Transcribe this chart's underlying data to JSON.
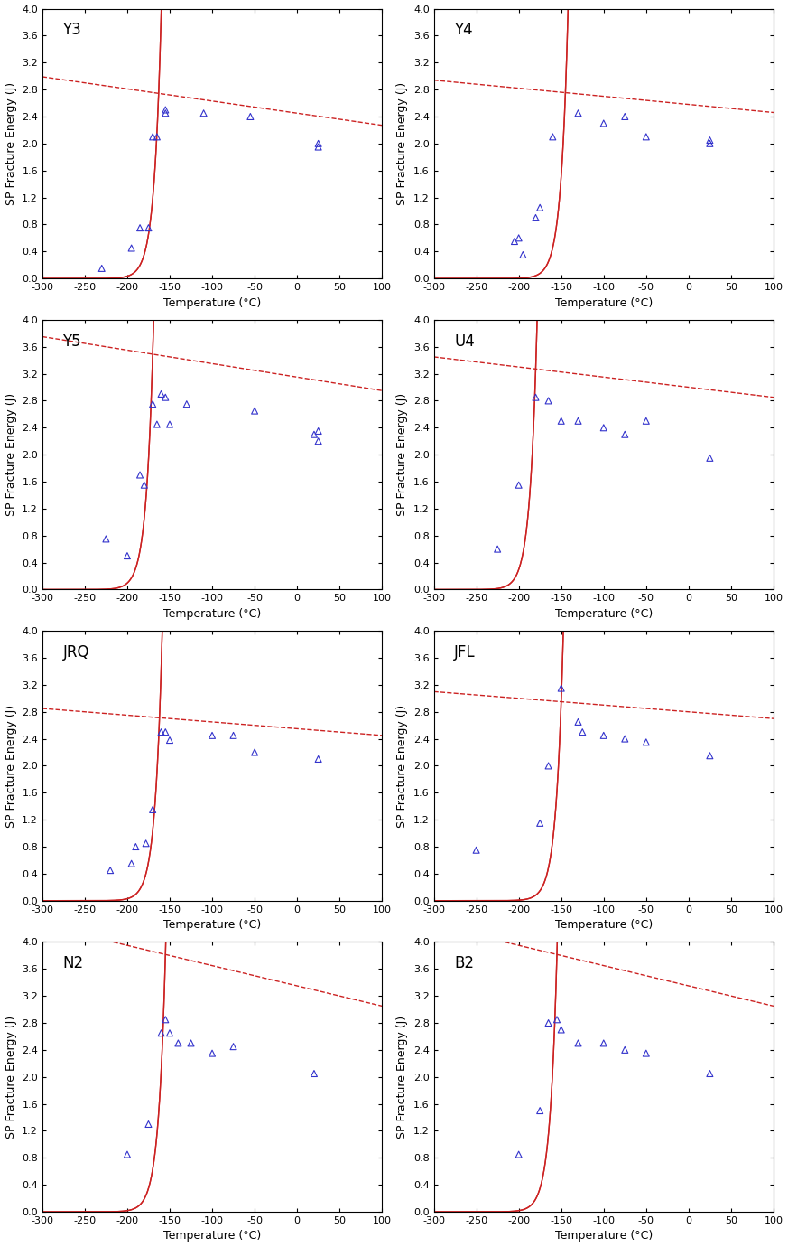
{
  "panels": [
    {
      "label": "Y3",
      "scatter_x": [
        -230,
        -195,
        -185,
        -175,
        -170,
        -165,
        -155,
        -155,
        -110,
        -55,
        25,
        25
      ],
      "scatter_y": [
        0.15,
        0.45,
        0.75,
        0.75,
        2.1,
        2.1,
        2.45,
        2.5,
        2.45,
        2.4,
        1.95,
        2.0
      ],
      "exp_a": 0.06,
      "exp_b": 230,
      "exp_c": -0.05,
      "lin_slope": -0.0018,
      "lin_intercept": 2.45,
      "T0": -163
    },
    {
      "label": "Y4",
      "scatter_x": [
        -205,
        -200,
        -195,
        -180,
        -175,
        -160,
        -130,
        -100,
        -75,
        -50,
        25,
        25
      ],
      "scatter_y": [
        0.55,
        0.6,
        0.35,
        0.9,
        1.05,
        2.1,
        2.45,
        2.3,
        2.4,
        2.1,
        2.05,
        2.0
      ],
      "exp_a": 0.06,
      "exp_b": 213,
      "exp_c": -0.05,
      "lin_slope": -0.0012,
      "lin_intercept": 2.58,
      "T0": -145
    },
    {
      "label": "Y5",
      "scatter_x": [
        -225,
        -200,
        -185,
        -180,
        -170,
        -165,
        -160,
        -155,
        -150,
        -130,
        -50,
        20,
        25,
        25
      ],
      "scatter_y": [
        0.75,
        0.5,
        1.7,
        1.55,
        2.75,
        2.45,
        2.9,
        2.85,
        2.45,
        2.75,
        2.65,
        2.3,
        2.2,
        2.35
      ],
      "exp_a": 0.065,
      "exp_b": 230,
      "exp_c": -0.05,
      "lin_slope": -0.002,
      "lin_intercept": 3.15,
      "T0": -170
    },
    {
      "label": "U4",
      "scatter_x": [
        -225,
        -200,
        -180,
        -165,
        -150,
        -130,
        -100,
        -75,
        -50,
        25
      ],
      "scatter_y": [
        0.6,
        1.55,
        2.85,
        2.8,
        2.5,
        2.5,
        2.4,
        2.3,
        2.5,
        1.95
      ],
      "exp_a": 0.07,
      "exp_b": 240,
      "exp_c": -0.05,
      "lin_slope": -0.0015,
      "lin_intercept": 3.0,
      "T0": -180
    },
    {
      "label": "JRQ",
      "scatter_x": [
        -220,
        -195,
        -190,
        -178,
        -170,
        -160,
        -155,
        -150,
        -100,
        -75,
        -50,
        25
      ],
      "scatter_y": [
        0.45,
        0.55,
        0.8,
        0.85,
        1.35,
        2.5,
        2.5,
        2.38,
        2.45,
        2.45,
        2.2,
        2.1
      ],
      "exp_a": 0.065,
      "exp_b": 230,
      "exp_c": -0.05,
      "lin_slope": -0.001,
      "lin_intercept": 2.55,
      "T0": -162
    },
    {
      "label": "JFL",
      "scatter_x": [
        -250,
        -175,
        -165,
        -150,
        -130,
        -125,
        -100,
        -75,
        -50,
        25
      ],
      "scatter_y": [
        0.75,
        1.15,
        2.0,
        3.15,
        2.65,
        2.5,
        2.45,
        2.4,
        2.35,
        2.15
      ],
      "exp_a": 0.07,
      "exp_b": 245,
      "exp_c": -0.05,
      "lin_slope": -0.001,
      "lin_intercept": 2.8,
      "T0": -150
    },
    {
      "label": "N2",
      "scatter_x": [
        -200,
        -175,
        -160,
        -155,
        -150,
        -140,
        -125,
        -100,
        -75,
        20
      ],
      "scatter_y": [
        0.85,
        1.3,
        2.65,
        2.85,
        2.65,
        2.5,
        2.5,
        2.35,
        2.45,
        2.05
      ],
      "exp_a": 0.075,
      "exp_b": 245,
      "exp_c": -0.05,
      "lin_slope": -0.003,
      "lin_intercept": 3.35,
      "T0": -155
    },
    {
      "label": "B2",
      "scatter_x": [
        -200,
        -175,
        -165,
        -155,
        -150,
        -130,
        -100,
        -75,
        -50,
        25
      ],
      "scatter_y": [
        0.85,
        1.5,
        2.8,
        2.85,
        2.7,
        2.5,
        2.5,
        2.4,
        2.35,
        2.05
      ],
      "exp_a": 0.075,
      "exp_b": 245,
      "exp_c": -0.05,
      "lin_slope": -0.003,
      "lin_intercept": 3.35,
      "T0": -155
    }
  ],
  "xlabel": "Temperature (°C)",
  "ylabel": "SP Fracture Energy (J)",
  "xlim": [
    -300,
    100
  ],
  "ylim": [
    0.0,
    4.0
  ],
  "xticks": [
    -300,
    -250,
    -200,
    -150,
    -100,
    -50,
    0,
    50,
    100
  ],
  "yticks": [
    0.0,
    0.4,
    0.8,
    1.2,
    1.6,
    2.0,
    2.4,
    2.8,
    3.2,
    3.6,
    4.0
  ],
  "scatter_color": "#3333cc",
  "curve_color": "#cc2222",
  "label_fontsize": 12,
  "tick_fontsize": 8,
  "axis_label_fontsize": 9
}
